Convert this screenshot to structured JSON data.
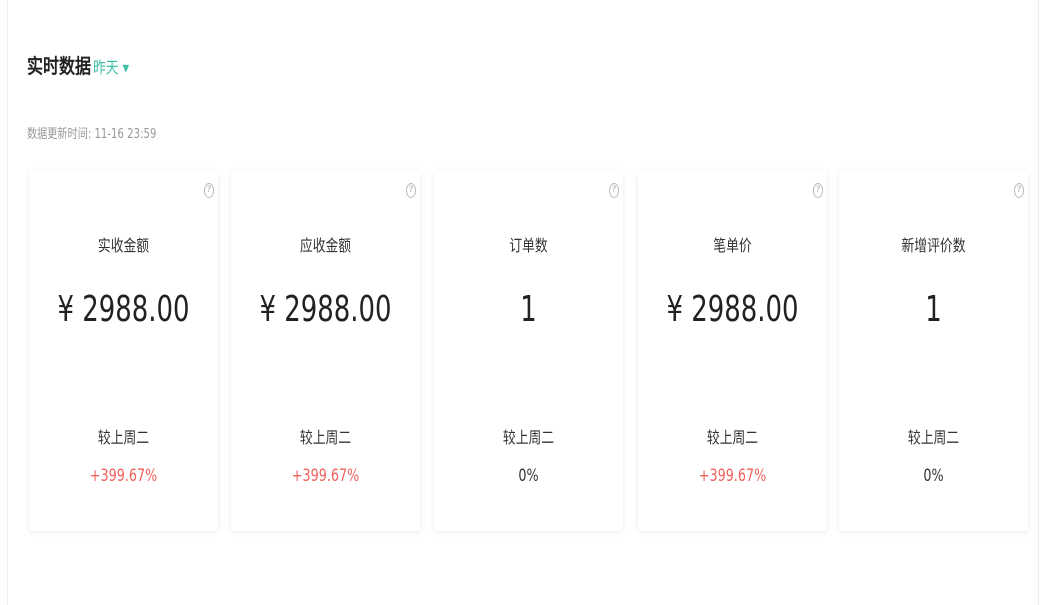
{
  "header": {
    "title": "实时数据",
    "range": "昨天 ▾",
    "updated": "数据更新时间: 11-16 23:59"
  },
  "accent": "#3cbfa5",
  "up_color": "#f0605c",
  "cards": [
    {
      "label": "实收金额",
      "value": "¥ 2988.00",
      "compare": "较上周二",
      "change": "+399.67%",
      "up": true
    },
    {
      "label": "应收金额",
      "value": "¥ 2988.00",
      "compare": "较上周二",
      "change": "+399.67%",
      "up": true
    },
    {
      "label": "订单数",
      "value": "1",
      "compare": "较上周二",
      "change": "0%",
      "up": false
    },
    {
      "label": "笔单价",
      "value": "¥ 2988.00",
      "compare": "较上周二",
      "change": "+399.67%",
      "up": true
    },
    {
      "label": "新增评价数",
      "value": "1",
      "compare": "较上周二",
      "change": "0%",
      "up": false
    }
  ]
}
